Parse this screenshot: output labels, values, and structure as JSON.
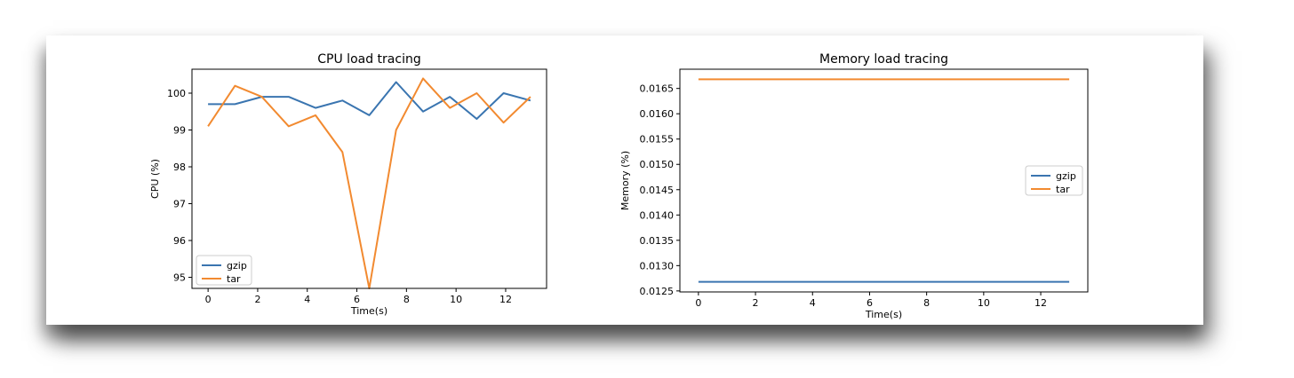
{
  "chart_data": [
    {
      "type": "line",
      "title": "CPU load tracing",
      "xlabel": "Time(s)",
      "ylabel": "CPU (%)",
      "xlim": [
        -0.65,
        13.65
      ],
      "ylim": [
        94.7,
        100.65
      ],
      "xticks": [
        0,
        2,
        4,
        6,
        8,
        10,
        12
      ],
      "yticks": [
        95,
        96,
        97,
        98,
        99,
        100
      ],
      "ytick_labels": [
        "95",
        "96",
        "97",
        "98",
        "99",
        "100"
      ],
      "legend_position": "lower-left",
      "series": [
        {
          "name": "gzip",
          "color": "#3a75b0",
          "x": [
            0,
            1.083,
            2.167,
            3.25,
            4.333,
            5.417,
            6.5,
            7.583,
            8.667,
            9.75,
            10.833,
            11.917,
            13
          ],
          "y": [
            99.7,
            99.7,
            99.9,
            99.9,
            99.6,
            99.8,
            99.4,
            100.3,
            99.5,
            99.9,
            99.3,
            100.0,
            99.8
          ]
        },
        {
          "name": "tar",
          "color": "#f28a30",
          "x": [
            0,
            1.083,
            2.167,
            3.25,
            4.333,
            5.417,
            6.5,
            7.583,
            8.667,
            9.75,
            10.833,
            11.917,
            13
          ],
          "y": [
            99.1,
            100.2,
            99.9,
            99.1,
            99.4,
            98.4,
            94.7,
            99.0,
            100.4,
            99.6,
            100.0,
            99.2,
            99.9
          ]
        }
      ]
    },
    {
      "type": "line",
      "title": "Memory load tracing",
      "xlabel": "Time(s)",
      "ylabel": "Memory (%)",
      "xlim": [
        -0.65,
        13.65
      ],
      "ylim": [
        0.01248,
        0.01688
      ],
      "xticks": [
        0,
        2,
        4,
        6,
        8,
        10,
        12
      ],
      "yticks": [
        0.0125,
        0.013,
        0.0135,
        0.014,
        0.0145,
        0.015,
        0.0155,
        0.016,
        0.0165
      ],
      "ytick_labels": [
        "0.0125",
        "0.0130",
        "0.0135",
        "0.0140",
        "0.0145",
        "0.0150",
        "0.0155",
        "0.0160",
        "0.0165"
      ],
      "legend_position": "center-right",
      "series": [
        {
          "name": "gzip",
          "color": "#3a75b0",
          "x": [
            0,
            13
          ],
          "y": [
            0.01268,
            0.01268
          ]
        },
        {
          "name": "tar",
          "color": "#f28a30",
          "x": [
            0,
            13
          ],
          "y": [
            0.01668,
            0.01668
          ]
        }
      ]
    }
  ]
}
